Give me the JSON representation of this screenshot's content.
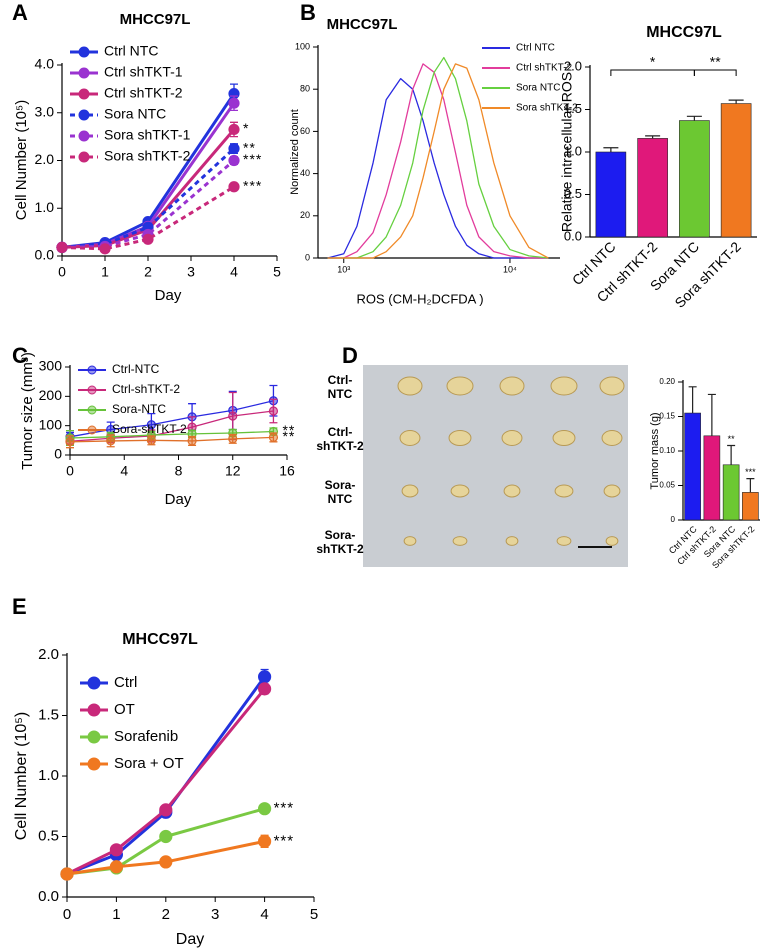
{
  "chart_data": [
    {
      "type": "line",
      "panel_label": "A",
      "title": "MHCC97L",
      "x_label": "Day",
      "y_label": "Cell Number (10⁵)",
      "x": [
        0,
        1,
        2,
        4
      ],
      "xlim": [
        0,
        5
      ],
      "xticks": [
        0,
        1,
        2,
        3,
        4,
        5
      ],
      "ylim": [
        0,
        4
      ],
      "yticks": [
        {
          "value": 0,
          "label": "0.0"
        },
        {
          "value": 1,
          "label": "1.0"
        },
        {
          "value": 2,
          "label": "2.0"
        },
        {
          "value": 3,
          "label": "3.0"
        },
        {
          "value": 4,
          "label": "4.0"
        }
      ],
      "markers": true,
      "series": [
        {
          "name": "Ctrl NTC",
          "color": "#2233dd",
          "dashed": false,
          "values": [
            0.18,
            0.28,
            0.72,
            3.4
          ],
          "errors": [
            0.02,
            0.03,
            0.05,
            0.2
          ]
        },
        {
          "name": "Ctrl shTKT-1",
          "color": "#9a33d0",
          "dashed": false,
          "values": [
            0.18,
            0.25,
            0.62,
            3.2
          ],
          "errors": [
            0.02,
            0.03,
            0.05,
            0.15
          ]
        },
        {
          "name": "Ctrl shTKT-2",
          "color": "#c8287a",
          "dashed": false,
          "values": [
            0.18,
            0.22,
            0.55,
            2.65
          ],
          "errors": [
            0.02,
            0.03,
            0.05,
            0.15
          ],
          "significance": "*"
        },
        {
          "name": "Sora NTC",
          "color": "#2233dd",
          "dashed": true,
          "values": [
            0.18,
            0.25,
            0.6,
            2.25
          ],
          "errors": [
            0.02,
            0.03,
            0.05,
            0.1
          ],
          "significance": "**"
        },
        {
          "name": "Sora shTKT-1",
          "color": "#9a33d0",
          "dashed": true,
          "values": [
            0.18,
            0.2,
            0.45,
            2.0
          ],
          "errors": [
            0.02,
            0.03,
            0.05,
            0.08
          ],
          "significance": "***"
        },
        {
          "name": "Sora shTKT-2",
          "color": "#c8287a",
          "dashed": true,
          "values": [
            0.18,
            0.15,
            0.35,
            1.45
          ],
          "errors": [
            0.02,
            0.03,
            0.05,
            0.06
          ],
          "significance": "***"
        }
      ]
    },
    {
      "type": "line",
      "panel_label": "B",
      "title": "MHCC97L",
      "x_label": "ROS (CM-H₂DCFDA )",
      "y_label": "Normalized count",
      "xscale": "log",
      "x": [
        800,
        1000,
        1200,
        1500,
        1800,
        2200,
        2600,
        3000,
        3500,
        4000,
        4700,
        5500,
        6500,
        8000,
        10000,
        13000,
        17000
      ],
      "xlim": [
        700,
        20000
      ],
      "xticks": [
        {
          "value": 1000,
          "label": "10³"
        },
        {
          "value": 10000,
          "label": "10⁴"
        }
      ],
      "ylim": [
        0,
        100
      ],
      "yticks": [
        0,
        20,
        40,
        60,
        80,
        100
      ],
      "markers": false,
      "series": [
        {
          "name": "Ctrl NTC",
          "color": "#2a2ae0",
          "values": [
            0,
            2,
            15,
            45,
            75,
            85,
            80,
            65,
            45,
            30,
            15,
            6,
            2,
            0,
            0,
            0,
            0
          ]
        },
        {
          "name": "Ctrl shTKT-2",
          "color": "#e23c9c",
          "values": [
            0,
            0,
            3,
            12,
            30,
            55,
            80,
            92,
            88,
            75,
            50,
            25,
            10,
            3,
            1,
            0,
            0
          ]
        },
        {
          "name": "Sora NTC",
          "color": "#66d040",
          "values": [
            0,
            0,
            0,
            3,
            10,
            25,
            45,
            70,
            88,
            95,
            85,
            65,
            35,
            15,
            4,
            1,
            0
          ]
        },
        {
          "name": "Sora shTKT-2",
          "color": "#f08a28",
          "values": [
            0,
            0,
            0,
            0,
            3,
            10,
            20,
            38,
            60,
            80,
            92,
            90,
            75,
            45,
            20,
            5,
            0
          ]
        }
      ]
    },
    {
      "type": "bar",
      "title": "MHCC97L",
      "y_label": "Relative intracellular ROS",
      "categories": [
        "Ctrl NTC",
        "Ctrl shTKT-2",
        "Sora NTC",
        "Sora shTKT-2"
      ],
      "values": [
        1.0,
        1.16,
        1.37,
        1.57
      ],
      "errors": [
        0.05,
        0.03,
        0.05,
        0.04
      ],
      "colors": [
        "#1c1cf0",
        "#e0187a",
        "#6cc832",
        "#f07820"
      ],
      "ylim": [
        0,
        2
      ],
      "yticks": [
        {
          "value": 0,
          "label": "0.0"
        },
        {
          "value": 0.5,
          "label": "0.5"
        },
        {
          "value": 1,
          "label": "1.0"
        },
        {
          "value": 1.5,
          "label": "1.5"
        },
        {
          "value": 2,
          "label": "2.0"
        }
      ],
      "brackets": [
        {
          "from": "Ctrl NTC",
          "to": "Sora NTC",
          "label": "*"
        },
        {
          "from": "Sora NTC",
          "to": "Sora shTKT-2",
          "label": "**"
        }
      ]
    },
    {
      "type": "line",
      "panel_label": "C",
      "x_label": "Day",
      "y_label": "Tumor size (mm³)",
      "x": [
        0,
        3,
        6,
        9,
        12,
        15
      ],
      "xlim": [
        0,
        16
      ],
      "xticks": [
        0,
        4,
        8,
        12,
        16
      ],
      "ylim": [
        0,
        300
      ],
      "yticks": [
        0,
        100,
        200,
        300
      ],
      "markers": true,
      "series": [
        {
          "name": "Ctrl-NTC",
          "color": "#2a2ae0",
          "values": [
            62,
            87,
            103,
            130,
            152,
            185
          ],
          "errors": [
            15,
            25,
            38,
            45,
            65,
            52
          ]
        },
        {
          "name": "Ctrl-shTKT-2",
          "color": "#c8287a",
          "values": [
            47,
            57,
            65,
            95,
            133,
            150
          ],
          "errors": [
            10,
            15,
            20,
            35,
            80,
            40
          ]
        },
        {
          "name": "Sora-NTC",
          "color": "#66c23a",
          "values": [
            58,
            62,
            68,
            72,
            75,
            80
          ],
          "errors": [
            25,
            15,
            12,
            12,
            12,
            12
          ],
          "significance": "**"
        },
        {
          "name": "Sora-shTKT-2",
          "color": "#e0702a",
          "values": [
            45,
            48,
            50,
            48,
            55,
            60
          ],
          "errors": [
            20,
            20,
            15,
            15,
            15,
            15
          ],
          "significance": "**"
        }
      ]
    },
    {
      "type": "image",
      "panel_label": "D",
      "row_labels": [
        [
          "Ctrl-",
          "NTC"
        ],
        [
          "Ctrl-",
          "shTKT-2"
        ],
        [
          "Sora-",
          "NTC"
        ],
        [
          "Sora-",
          "shTKT-2"
        ]
      ]
    },
    {
      "type": "bar",
      "y_label": "Tumor mass (g)",
      "categories": [
        "Ctrl NTC",
        "Ctrl shTKT-2",
        "Sora NTC",
        "Sora shTKT-2"
      ],
      "values": [
        0.155,
        0.122,
        0.08,
        0.04
      ],
      "errors": [
        0.038,
        0.06,
        0.028,
        0.02
      ],
      "colors": [
        "#1c1cf0",
        "#e0187a",
        "#6cc832",
        "#f07820"
      ],
      "ylim": [
        0,
        0.2
      ],
      "yticks": [
        0,
        0.05,
        {
          "value": 0.1,
          "label": "0.10"
        },
        0.15,
        {
          "value": 0.2,
          "label": "0.20"
        }
      ],
      "annotations": [
        {
          "category": "Sora NTC",
          "text": "**"
        },
        {
          "category": "Sora shTKT-2",
          "text": "***"
        }
      ]
    },
    {
      "type": "line",
      "panel_label": "E",
      "title": "MHCC97L",
      "x_label": "Day",
      "y_label": "Cell Number (10⁵)",
      "x": [
        0,
        1,
        2,
        4
      ],
      "xlim": [
        0,
        5
      ],
      "xticks": [
        0,
        1,
        2,
        3,
        4,
        5
      ],
      "ylim": [
        0,
        2
      ],
      "yticks": [
        {
          "value": 0,
          "label": "0.0"
        },
        {
          "value": 0.5,
          "label": "0.5"
        },
        {
          "value": 1,
          "label": "1.0"
        },
        {
          "value": 1.5,
          "label": "1.5"
        },
        {
          "value": 2,
          "label": "2.0"
        }
      ],
      "markers": true,
      "series": [
        {
          "name": "Ctrl",
          "color": "#2233dd",
          "values": [
            0.19,
            0.35,
            0.7,
            1.82
          ],
          "errors": [
            0.01,
            0.02,
            0.03,
            0.06
          ]
        },
        {
          "name": "OT",
          "color": "#c8287a",
          "values": [
            0.19,
            0.39,
            0.72,
            1.72
          ],
          "errors": [
            0.01,
            0.02,
            0.03,
            0.04
          ]
        },
        {
          "name": "Sorafenib",
          "color": "#7ac943",
          "values": [
            0.19,
            0.24,
            0.5,
            0.73
          ],
          "errors": [
            0.01,
            0.02,
            0.02,
            0.02
          ],
          "significance": "***"
        },
        {
          "name": "Sora + OT",
          "color": "#f07820",
          "values": [
            0.19,
            0.25,
            0.29,
            0.46
          ],
          "errors": [
            0.01,
            0.02,
            0.02,
            0.05
          ],
          "significance": "***"
        }
      ]
    }
  ]
}
